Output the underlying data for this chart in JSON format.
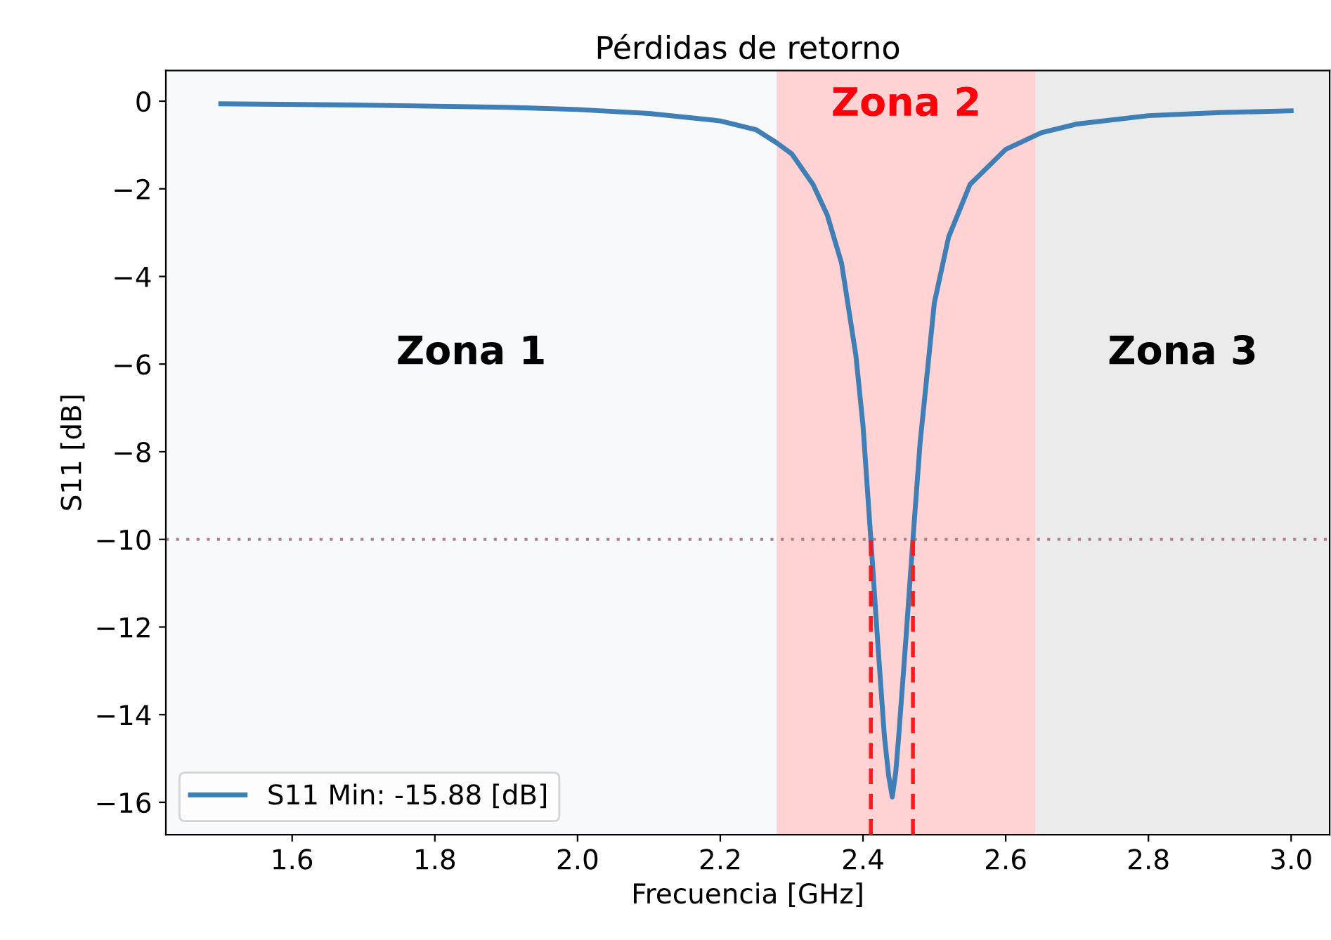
{
  "chart_data": {
    "type": "line",
    "title": "Pérdidas de retorno",
    "xlabel": "Frecuencia [GHz]",
    "ylabel": "S11 [dB]",
    "x": [
      1.5,
      1.7,
      1.9,
      2.0,
      2.1,
      2.2,
      2.25,
      2.279,
      2.3,
      2.33,
      2.35,
      2.37,
      2.39,
      2.4,
      2.411,
      2.42,
      2.43,
      2.436,
      2.441,
      2.446,
      2.45,
      2.46,
      2.47,
      2.48,
      2.5,
      2.52,
      2.55,
      2.6,
      2.65,
      2.7,
      2.8,
      2.9,
      3.0
    ],
    "series": [
      {
        "name": "S11 Min: -15.88 [dB]",
        "color": "#3f7fb5",
        "values": [
          -0.06,
          -0.09,
          -0.14,
          -0.19,
          -0.28,
          -0.45,
          -0.65,
          -0.95,
          -1.2,
          -1.9,
          -2.6,
          -3.7,
          -5.8,
          -7.4,
          -10,
          -12.2,
          -14.5,
          -15.4,
          -15.88,
          -15.3,
          -14.5,
          -12.3,
          -10,
          -7.8,
          -4.6,
          -3.1,
          -1.9,
          -1.1,
          -0.72,
          -0.52,
          -0.33,
          -0.26,
          -0.22
        ]
      }
    ],
    "xlim": [
      1.423,
      3.054
    ],
    "ylim": [
      -16.74,
      0.7
    ],
    "xticks": [
      1.6,
      1.8,
      {
        "value": 2.0,
        "label": "2.0"
      },
      2.2,
      2.4,
      2.6,
      2.8,
      {
        "value": 3.0,
        "label": "3.0"
      }
    ],
    "yticks": [
      {
        "value": 0,
        "label": "0"
      },
      {
        "value": -2,
        "label": "−2"
      },
      {
        "value": -4,
        "label": "−4"
      },
      {
        "value": -6,
        "label": "−6"
      },
      {
        "value": -8,
        "label": "−8"
      },
      {
        "value": -10,
        "label": "−10"
      },
      {
        "value": -12,
        "label": "−12"
      },
      {
        "value": -14,
        "label": "−14"
      },
      {
        "value": -16,
        "label": "−16"
      }
    ],
    "bands": [
      {
        "axis": "x",
        "from": 1.423,
        "to": 2.279,
        "label": "Zona 1",
        "color": "#f7f9fd"
      },
      {
        "axis": "x",
        "from": 2.279,
        "to": 2.642,
        "label": "Zona 2",
        "color": "#ffd2d4"
      },
      {
        "axis": "x",
        "from": 2.642,
        "to": 3.054,
        "label": "Zona 3",
        "color": "#ebebeb"
      }
    ],
    "ref_lines": [
      {
        "axis": "y",
        "value": -10,
        "color": "#b07f8f",
        "line_style": "dotted"
      },
      {
        "axis": "x",
        "value": 2.411,
        "color": "#ff1a1a",
        "line_style": "dashed"
      },
      {
        "axis": "x",
        "value": 2.47,
        "color": "#ff1a1a",
        "line_style": "dashed"
      }
    ],
    "legend": "bottom left",
    "grid": false
  }
}
